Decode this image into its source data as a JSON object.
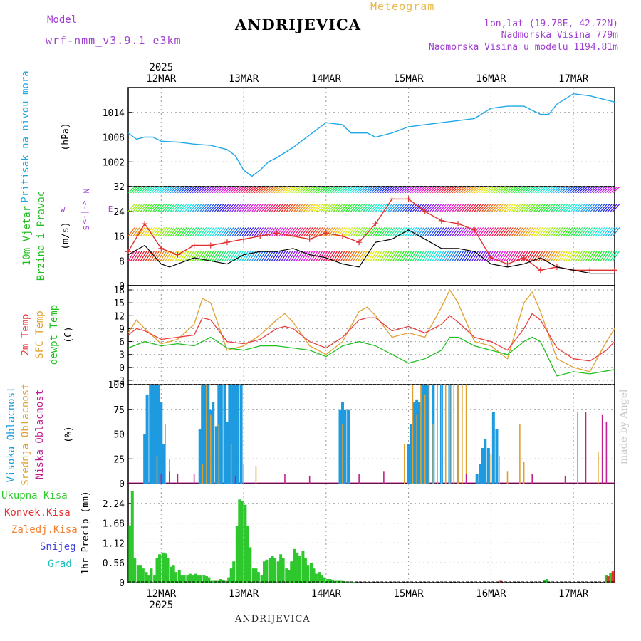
{
  "header": {
    "model_label": "Model",
    "model_name": "wrf-nmm_v3.9.1 e3km",
    "title": "Meteogram",
    "station": "ANDRIJEVICA",
    "coords": "lon,lat (19.78E, 42.72N)",
    "altitude": "Nadmorska Visina 779m",
    "model_altitude": "Nadmorska Visina u modelu 1194.81m"
  },
  "footer": {
    "station": "ANDRIJEVICA",
    "made_by": "made by Angel"
  },
  "colors": {
    "pressure": "#1ea8e8",
    "wind_speed": "#000000",
    "wind_dir": "#e03030",
    "t2m": "#e84040",
    "sfc": "#e0a030",
    "dewpt": "#20c020",
    "high_cloud": "#1e9be0",
    "mid_cloud": "#e0a030",
    "low_cloud": "#c0208f",
    "total_precip": "#2ec82e",
    "conv": "#e83030",
    "frozen": "#f08030",
    "snow": "#4444dd",
    "grad": "#20c0c0"
  },
  "time_axis": {
    "year": "2025",
    "labels": [
      "12MAR",
      "13MAR",
      "14MAR",
      "15MAR",
      "16MAR",
      "17MAR"
    ],
    "start_day": 11.6,
    "end_day": 17.5
  },
  "chart_data": [
    {
      "type": "line",
      "id": "pressure",
      "title": "Pritisak na nivou mora",
      "ylabel": "(hPa)",
      "ylim": [
        996,
        1020
      ],
      "yticks": [
        "1002",
        "1008",
        "1014"
      ],
      "ytick_values": [
        1002,
        1008,
        1014
      ],
      "series": [
        {
          "name": "Pritisak na nivou mora",
          "x": [
            11.6,
            11.7,
            11.8,
            11.9,
            12.0,
            12.2,
            12.4,
            12.6,
            12.8,
            12.9,
            13.0,
            13.1,
            13.2,
            13.3,
            13.4,
            13.6,
            13.8,
            14.0,
            14.2,
            14.3,
            14.5,
            14.6,
            14.8,
            15.0,
            15.2,
            15.4,
            15.6,
            15.8,
            16.0,
            16.2,
            16.4,
            16.6,
            16.7,
            16.8,
            17.0,
            17.2,
            17.5
          ],
          "values": [
            1009,
            1007.5,
            1008,
            1008,
            1007,
            1006.8,
            1006.3,
            1006,
            1005,
            1003.5,
            1000,
            998.5,
            1000,
            1002,
            1003,
            1005.5,
            1008.5,
            1011.5,
            1011,
            1009,
            1009,
            1008,
            1009,
            1010.5,
            1011,
            1011.5,
            1012,
            1012.5,
            1015,
            1015.5,
            1015.5,
            1013.5,
            1013.5,
            1016,
            1018.5,
            1018,
            1016.5
          ]
        }
      ]
    },
    {
      "type": "line",
      "id": "wind",
      "title": "10m Vjetar Brzina i Pravac",
      "ylabel": "(m/s)",
      "ylim": [
        0,
        32
      ],
      "yticks": [
        "0",
        "8",
        "16",
        "24",
        "32"
      ],
      "ytick_values": [
        0,
        8,
        16,
        24,
        32
      ],
      "compass": [
        "N",
        "w",
        "<-|->",
        "E",
        "S"
      ],
      "series": [
        {
          "name": "Brzina (m/s)",
          "x": [
            11.6,
            11.8,
            12.0,
            12.1,
            12.2,
            12.4,
            12.6,
            12.8,
            13.0,
            13.2,
            13.4,
            13.6,
            13.8,
            14.0,
            14.1,
            14.2,
            14.4,
            14.6,
            14.8,
            15.0,
            15.2,
            15.4,
            15.6,
            15.8,
            16.0,
            16.2,
            16.4,
            16.6,
            16.8,
            17.0,
            17.2,
            17.5
          ],
          "values": [
            10,
            13,
            7,
            6,
            7,
            9,
            8,
            7,
            10,
            11,
            11,
            12,
            10,
            9,
            8,
            7,
            6,
            14,
            15,
            18,
            15,
            12,
            12,
            11,
            7,
            6,
            7,
            9,
            6,
            5,
            4,
            4
          ]
        },
        {
          "name": "Pravac (skala)",
          "x": [
            11.6,
            11.8,
            12.0,
            12.2,
            12.4,
            12.6,
            12.8,
            13.0,
            13.2,
            13.4,
            13.6,
            13.8,
            14.0,
            14.2,
            14.4,
            14.6,
            14.8,
            15.0,
            15.2,
            15.4,
            15.6,
            15.8,
            16.0,
            16.2,
            16.4,
            16.6,
            16.8,
            17.0,
            17.2,
            17.5
          ],
          "values": [
            11,
            20,
            12,
            10,
            13,
            13,
            14,
            15,
            16,
            17,
            16,
            15,
            17,
            16,
            14,
            20,
            28,
            28,
            24,
            21,
            20,
            18,
            9,
            7,
            9,
            5,
            6,
            5,
            5,
            5
          ]
        }
      ]
    },
    {
      "type": "line",
      "id": "temperature",
      "title": "2m Temp",
      "ylabel": "(C)",
      "ylim": [
        -4,
        19
      ],
      "yticks": [
        "−3",
        "0",
        "3",
        "6",
        "9",
        "12",
        "15",
        "18"
      ],
      "ytick_values": [
        -3,
        0,
        3,
        6,
        9,
        12,
        15,
        18
      ],
      "legend": [
        "2m Temp",
        "SFC Temp",
        "dewpt Temp"
      ],
      "series": [
        {
          "name": "2m Temp",
          "x": [
            11.6,
            11.7,
            11.8,
            12.0,
            12.2,
            12.4,
            12.5,
            12.6,
            12.8,
            13.0,
            13.2,
            13.4,
            13.5,
            13.6,
            13.8,
            14.0,
            14.2,
            14.4,
            14.5,
            14.6,
            14.8,
            15.0,
            15.2,
            15.4,
            15.5,
            15.6,
            15.8,
            16.0,
            16.2,
            16.4,
            16.5,
            16.6,
            16.8,
            17.0,
            17.2,
            17.4,
            17.5
          ],
          "values": [
            7.5,
            9,
            8.5,
            6.5,
            7,
            7.5,
            11.5,
            11,
            6,
            5.5,
            6.5,
            9,
            9.5,
            9,
            6,
            4.5,
            7,
            11,
            11.5,
            11.5,
            8.5,
            9.5,
            8,
            10,
            12,
            10.5,
            7,
            6,
            4,
            9,
            12.5,
            11,
            4.5,
            2,
            1.5,
            4,
            6
          ]
        },
        {
          "name": "SFC Temp",
          "x": [
            11.6,
            11.7,
            11.8,
            12.0,
            12.2,
            12.4,
            12.5,
            12.6,
            12.8,
            13.0,
            13.2,
            13.4,
            13.5,
            13.6,
            13.8,
            14.0,
            14.2,
            14.4,
            14.5,
            14.6,
            14.8,
            15.0,
            15.2,
            15.4,
            15.5,
            15.6,
            15.8,
            16.0,
            16.2,
            16.4,
            16.5,
            16.6,
            16.8,
            17.0,
            17.2,
            17.4,
            17.5
          ],
          "values": [
            8,
            11,
            9,
            5.5,
            6.5,
            10,
            16,
            15,
            4,
            5,
            7.5,
            11,
            12.5,
            10.5,
            5,
            3,
            6,
            13,
            14,
            12,
            7,
            8,
            7,
            14,
            18,
            15,
            6,
            5,
            2,
            15,
            17.5,
            13,
            2,
            0,
            -1,
            6,
            9
          ]
        },
        {
          "name": "dewpt Temp",
          "x": [
            11.6,
            11.8,
            12.0,
            12.2,
            12.4,
            12.6,
            12.8,
            13.0,
            13.2,
            13.4,
            13.6,
            13.8,
            14.0,
            14.2,
            14.4,
            14.6,
            14.8,
            15.0,
            15.2,
            15.4,
            15.5,
            15.6,
            15.8,
            16.0,
            16.2,
            16.4,
            16.5,
            16.6,
            16.8,
            17.0,
            17.2,
            17.5
          ],
          "values": [
            4.5,
            6,
            5,
            5.5,
            5,
            7,
            4.5,
            4,
            5,
            5,
            4.5,
            4,
            2.5,
            5,
            6,
            5,
            3,
            1,
            2,
            4,
            7,
            7,
            5,
            4,
            3,
            6,
            7,
            6,
            -2,
            -1,
            -1.5,
            -0.5
          ]
        }
      ]
    },
    {
      "type": "bar",
      "id": "clouds",
      "title": "Oblacnost",
      "ylabel": "(%)",
      "ylim": [
        0,
        100
      ],
      "yticks": [
        "0",
        "25",
        "50",
        "75",
        "100"
      ],
      "ytick_values": [
        0,
        25,
        50,
        75,
        100
      ],
      "legend": [
        "Visoka Oblacnost",
        "Srednja Oblacnost",
        "Niska Oblacnost"
      ],
      "series": [
        {
          "name": "Visoka Oblacnost",
          "x": [
            11.8,
            11.83,
            11.87,
            11.9,
            11.93,
            11.97,
            12.0,
            12.03,
            12.47,
            12.5,
            12.53,
            12.57,
            12.6,
            12.63,
            12.67,
            12.7,
            12.73,
            12.77,
            12.8,
            12.83,
            12.87,
            12.9,
            12.93,
            12.97,
            14.17,
            14.2,
            14.23,
            14.27,
            15.0,
            15.03,
            15.07,
            15.1,
            15.13,
            15.17,
            15.2,
            15.23,
            15.3,
            15.4,
            15.5,
            15.6,
            15.83,
            15.87,
            15.9,
            15.93,
            15.97,
            16.03,
            16.07
          ],
          "values": [
            50,
            90,
            100,
            100,
            100,
            100,
            82,
            40,
            55,
            100,
            100,
            100,
            75,
            82,
            58,
            100,
            100,
            100,
            62,
            100,
            100,
            100,
            100,
            100,
            75,
            82,
            75,
            75,
            40,
            60,
            82,
            85,
            82,
            100,
            100,
            100,
            100,
            100,
            100,
            100,
            10,
            20,
            36,
            45,
            36,
            72,
            55
          ]
        },
        {
          "name": "Srednja Oblacnost",
          "x": [
            11.95,
            12.05,
            12.1,
            12.5,
            12.55,
            12.6,
            12.7,
            12.85,
            13.0,
            13.15,
            14.2,
            14.95,
            15.05,
            15.1,
            15.15,
            15.2,
            15.25,
            15.3,
            15.35,
            15.4,
            15.45,
            15.5,
            15.55,
            15.6,
            15.65,
            15.7,
            16.0,
            16.1,
            16.2,
            16.35,
            16.4,
            17.05,
            17.3
          ],
          "values": [
            28,
            60,
            25,
            20,
            100,
            70,
            60,
            40,
            20,
            18,
            60,
            40,
            100,
            70,
            100,
            90,
            100,
            60,
            100,
            100,
            100,
            100,
            100,
            100,
            100,
            100,
            30,
            28,
            12,
            60,
            22,
            72,
            32
          ]
        },
        {
          "name": "Niska Oblacnost",
          "x": [
            12.0,
            12.1,
            12.2,
            12.4,
            12.9,
            13.5,
            13.8,
            14.4,
            14.7,
            15.7,
            16.5,
            16.9,
            17.15,
            17.35,
            17.4
          ],
          "values": [
            10,
            12,
            10,
            10,
            8,
            10,
            8,
            10,
            12,
            10,
            10,
            8,
            72,
            70,
            62
          ]
        }
      ]
    },
    {
      "type": "bar",
      "id": "precip",
      "title": "1hr Precip",
      "ylabel": "1hr Precip (mm)",
      "ylim": [
        0,
        2.8
      ],
      "yticks": [
        "0",
        "0.56",
        "1.12",
        "1.68",
        "2.24"
      ],
      "ytick_values": [
        0,
        0.56,
        1.12,
        1.68,
        2.24
      ],
      "legend": [
        "Ukupna Kisa",
        "Konvek.Kisa",
        "Zaledj.Kisa",
        "Snijeg",
        "Grad"
      ],
      "series": [
        {
          "name": "Ukupna Kisa",
          "x": [
            11.62,
            11.65,
            11.68,
            11.72,
            11.75,
            11.78,
            11.82,
            11.85,
            11.88,
            11.92,
            11.95,
            11.98,
            12.02,
            12.05,
            12.08,
            12.12,
            12.15,
            12.18,
            12.22,
            12.25,
            12.28,
            12.32,
            12.35,
            12.38,
            12.42,
            12.45,
            12.48,
            12.52,
            12.55,
            12.58,
            12.62,
            12.65,
            12.68,
            12.72,
            12.75,
            12.78,
            12.82,
            12.85,
            12.88,
            12.92,
            12.95,
            12.98,
            13.02,
            13.05,
            13.08,
            13.12,
            13.15,
            13.18,
            13.22,
            13.25,
            13.28,
            13.32,
            13.35,
            13.38,
            13.42,
            13.45,
            13.48,
            13.52,
            13.55,
            13.58,
            13.62,
            13.65,
            13.68,
            13.72,
            13.75,
            13.78,
            13.82,
            13.85,
            13.88,
            13.92,
            13.95,
            13.98,
            14.02,
            14.05,
            14.08,
            14.12,
            14.15,
            14.18,
            14.22,
            14.25,
            14.28,
            14.32,
            14.35,
            16.65,
            16.68,
            17.4,
            17.45
          ],
          "values": [
            1.62,
            2.6,
            0.7,
            0.5,
            0.5,
            0.4,
            0.3,
            0.2,
            0.4,
            0.2,
            0.7,
            0.8,
            0.85,
            0.82,
            0.7,
            0.45,
            0.5,
            0.3,
            0.35,
            0.2,
            0.2,
            0.2,
            0.25,
            0.2,
            0.25,
            0.2,
            0.2,
            0.2,
            0.18,
            0.15,
            0.05,
            0.05,
            0.05,
            0.1,
            0.08,
            0.05,
            0.15,
            0.4,
            0.6,
            1.6,
            2.35,
            2.3,
            2.2,
            1.6,
            1.0,
            0.4,
            0.4,
            0.3,
            0.2,
            0.6,
            0.65,
            0.7,
            0.75,
            0.7,
            0.6,
            0.8,
            0.7,
            0.4,
            0.35,
            0.6,
            0.95,
            0.85,
            0.75,
            0.9,
            0.7,
            0.5,
            0.55,
            0.4,
            0.25,
            0.3,
            0.2,
            0.15,
            0.1,
            0.1,
            0.08,
            0.05,
            0.05,
            0.05,
            0.04,
            0.03,
            0.03,
            0.02,
            0.02,
            0.08,
            0.1,
            0.2,
            0.28
          ]
        },
        {
          "name": "Konvek.Kisa",
          "x": [
            16.12,
            17.42,
            17.48
          ],
          "values": [
            0.05,
            0.18,
            0.32
          ]
        }
      ]
    }
  ]
}
